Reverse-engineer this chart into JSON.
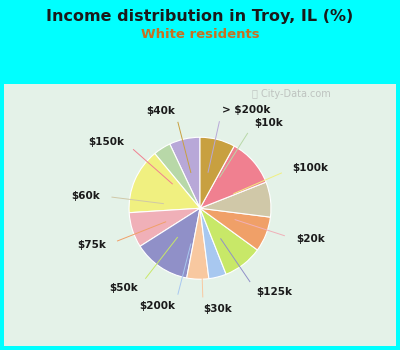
{
  "title": "Income distribution in Troy, IL (%)",
  "subtitle": "White residents",
  "title_color": "#1a1a1a",
  "subtitle_color": "#c87020",
  "background_outer": "#00ffff",
  "background_inner": "#dff0e8",
  "labels": [
    "> $200k",
    "$10k",
    "$100k",
    "$20k",
    "$125k",
    "$30k",
    "$200k",
    "$50k",
    "$75k",
    "$60k",
    "$150k",
    "$40k"
  ],
  "values": [
    7,
    4,
    15,
    8,
    13,
    5,
    4,
    9,
    8,
    8,
    11,
    8
  ],
  "colors": [
    "#b8a8d8",
    "#b8d8a8",
    "#f0f080",
    "#f0b0b8",
    "#9090c8",
    "#f8c8a0",
    "#a8c8f0",
    "#c8e868",
    "#f0a068",
    "#d0c8a8",
    "#f08090",
    "#c8a040"
  ],
  "label_fontsize": 7.5,
  "label_color": "#1a1a1a",
  "startangle": 90,
  "wedge_linewidth": 0.8,
  "wedge_edgecolor": "#ffffff"
}
